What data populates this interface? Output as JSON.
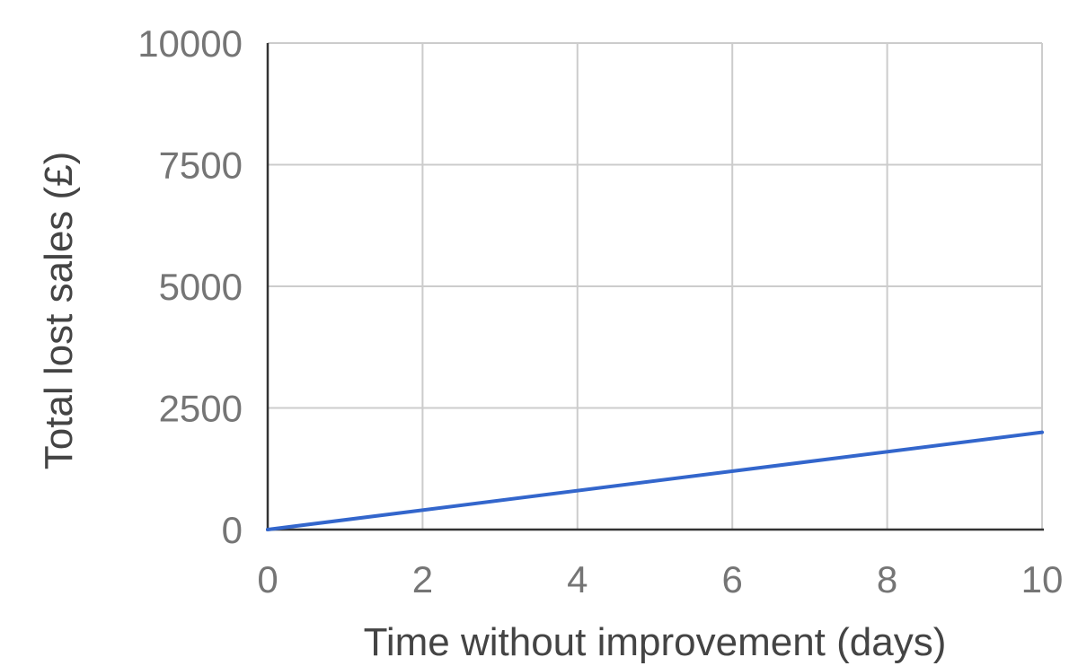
{
  "chart_data": {
    "type": "line",
    "title": "",
    "xlabel": "Time without improvement (days)",
    "ylabel": "Total lost sales (£)",
    "xlim": [
      0,
      10
    ],
    "ylim": [
      0,
      10000
    ],
    "x_ticks": [
      "0",
      "2",
      "4",
      "6",
      "8",
      "10"
    ],
    "y_ticks": [
      "0",
      "2500",
      "5000",
      "7500",
      "10000"
    ],
    "grid": true,
    "legend": "none",
    "series": [
      {
        "color": "#3366cc",
        "x": [
          0,
          10
        ],
        "y": [
          0,
          2000
        ]
      }
    ]
  }
}
